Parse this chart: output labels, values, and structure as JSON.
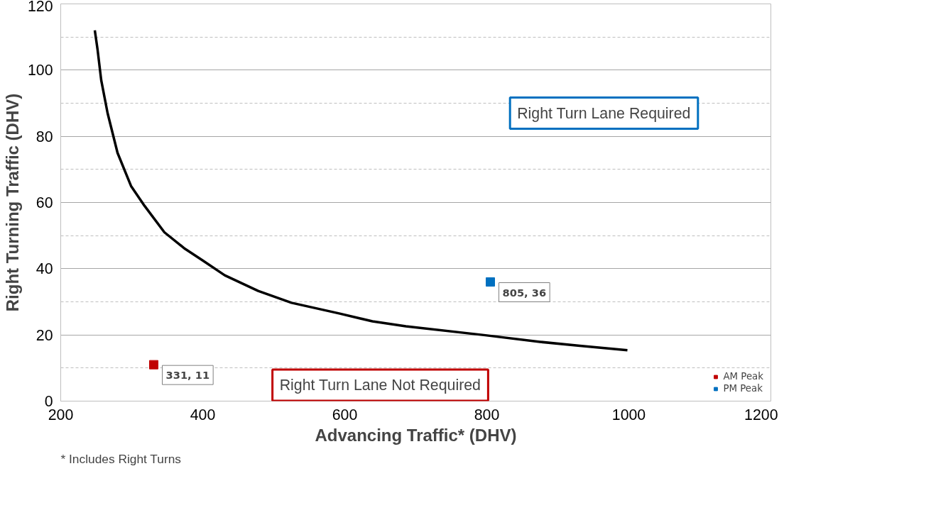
{
  "chart_data": {
    "type": "line",
    "xlabel": "Advancing Traffic* (DHV)",
    "ylabel": "Right Turning Traffic (DHV)",
    "xlim": [
      200,
      1200
    ],
    "xticks": [
      200,
      400,
      600,
      800,
      1000,
      1200
    ],
    "ylim": [
      0,
      120
    ],
    "yticks": [
      0,
      20,
      40,
      60,
      80,
      100,
      120
    ],
    "grid": true,
    "legend": "bottom right",
    "series": [
      {
        "color": "#000000",
        "x": [
          248,
          252,
          257,
          266,
          280,
          299,
          318,
          346,
          375,
          400,
          431,
          478,
          525,
          592,
          639,
          686,
          798,
          875,
          931,
          998
        ],
        "values": [
          112,
          106,
          97,
          87,
          75,
          65,
          59,
          51,
          46,
          42.5,
          38,
          33.3,
          29.7,
          26.5,
          24.1,
          22.6,
          19.9,
          17.9,
          16.7,
          15.4
        ]
      },
      {
        "type": "scatter",
        "name": "AM Peak",
        "color": "#c00000",
        "marker": "square",
        "x": [
          331
        ],
        "values": [
          11
        ],
        "value_labels": [
          "331, 11"
        ]
      },
      {
        "type": "scatter",
        "name": "PM Peak",
        "color": "#0070c0",
        "marker": "square",
        "x": [
          805
        ],
        "values": [
          36
        ],
        "value_labels": [
          "805, 36"
        ]
      }
    ],
    "annotations": [
      "Right Turn Lane Required",
      "Right Turn Lane Not Required",
      "* Includes Right Turns"
    ]
  }
}
